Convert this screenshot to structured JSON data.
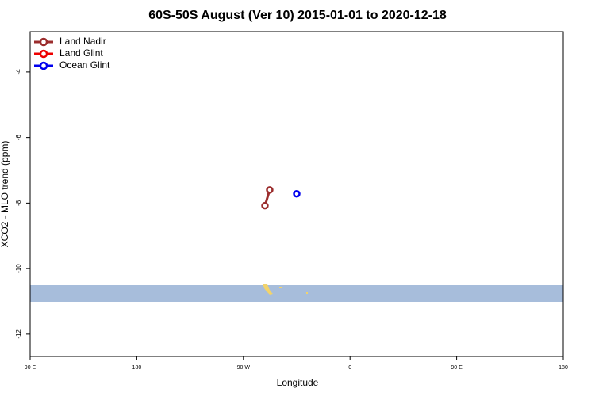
{
  "chart_data": {
    "type": "line",
    "title": "60S-50S August (Ver 10)   2015-01-01 to 2020-12-18",
    "x_label": "Longitude",
    "y_label": "XCO2 - MLO trend (ppm)",
    "xlim": [
      90,
      540
    ],
    "xticks": [
      {
        "value": 90,
        "label": "90 E"
      },
      {
        "value": 180,
        "label": "180"
      },
      {
        "value": 270,
        "label": "90 W"
      },
      {
        "value": 360,
        "label": "0"
      },
      {
        "value": 450,
        "label": "90 E"
      },
      {
        "value": 540,
        "label": "180"
      }
    ],
    "ylim": [
      -12.68,
      -2.77
    ],
    "yticks": [
      -4,
      -6,
      -8,
      -10,
      -12
    ],
    "legend": "top-left",
    "series": [
      {
        "name": "Land Nadir",
        "color": "#9b2d2d",
        "x": [
          288.2,
          292.2
        ],
        "values": [
          -8.08,
          -7.6
        ]
      },
      {
        "name": "Land Glint",
        "color": "#ee0000",
        "x": [],
        "values": []
      },
      {
        "name": "Ocean Glint",
        "color": "#0000ee",
        "x": [
          315
        ],
        "values": [
          -7.72
        ]
      }
    ]
  }
}
